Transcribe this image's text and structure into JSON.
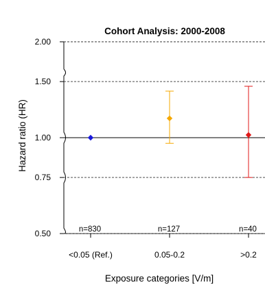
{
  "chart_data": {
    "type": "scatter",
    "title": "Cohort Analysis: 2000-2008",
    "xlabel": "Exposure categories [V/m]",
    "ylabel": "Hazard ratio (HR)",
    "y_scale": "log",
    "ylim": [
      0.5,
      2.0
    ],
    "yticks": [
      2.0,
      1.5,
      1.0,
      0.75,
      0.5
    ],
    "ytick_labels": [
      "2.00",
      "1.50",
      "1.00",
      "0.75",
      "0.50"
    ],
    "dashed_reference_lines": [
      2.0,
      1.5,
      0.75,
      0.5
    ],
    "solid_reference_line": 1.0,
    "categories": [
      "<0.05 (Ref.)",
      "0.05-0.2",
      ">0.2"
    ],
    "series": [
      {
        "hr": [
          1.0,
          1.15,
          1.02
        ],
        "ci_lower": [
          null,
          0.96,
          0.75
        ],
        "ci_upper": [
          null,
          1.4,
          1.45
        ],
        "colors": [
          "#1a1adb",
          "#f5a800",
          "#e01818"
        ]
      }
    ],
    "n_labels": [
      "n=830",
      "n=127",
      "n=40"
    ]
  }
}
